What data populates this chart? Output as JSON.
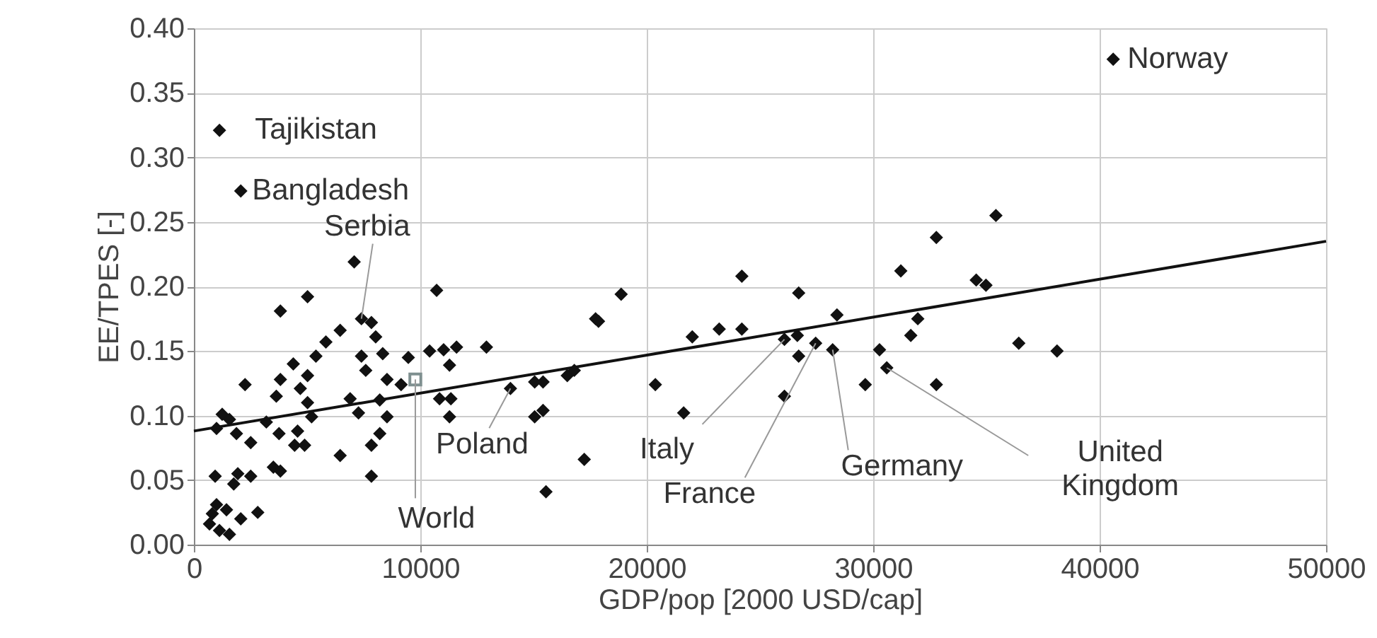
{
  "chart_data": {
    "type": "scatter",
    "xlabel": "GDP/pop [2000 USD/cap]",
    "ylabel": "EE/TPES [-]",
    "xlim": [
      0,
      50000
    ],
    "xticks": [
      0,
      10000,
      20000,
      30000,
      40000,
      50000
    ],
    "ylim": [
      0,
      0.4
    ],
    "yticks": [
      {
        "value": 0,
        "label": "0.00"
      },
      {
        "value": 0.05,
        "label": "0.05"
      },
      {
        "value": 0.1,
        "label": "0.10"
      },
      {
        "value": 0.15,
        "label": "0.15"
      },
      {
        "value": 0.2,
        "label": "0.20"
      },
      {
        "value": 0.25,
        "label": "0.25"
      },
      {
        "value": 0.3,
        "label": "0.30"
      },
      {
        "value": 0.35,
        "label": "0.35"
      },
      {
        "value": 0.4,
        "label": "0.40"
      }
    ],
    "grid": true,
    "series": [
      {
        "marker": "diamond",
        "color": "#111111",
        "x": [
          40600,
          1130,
          2070,
          7080,
          5020,
          3820,
          10720,
          17740,
          7400,
          7840,
          6460,
          5830,
          8030,
          5390,
          4390,
          7400,
          8340,
          9470,
          10410,
          11030,
          11600,
          12920,
          11290,
          7590,
          8530,
          9150,
          2260,
          3820,
          5020,
          4700,
          3640,
          5020,
          6900,
          8210,
          10850,
          11350,
          1250,
          1570,
          3200,
          5200,
          7270,
          8530,
          11290,
          13980,
          15050,
          15420,
          16490,
          16800,
          15420,
          15050,
          17240,
          15550,
          1000,
          1880,
          2510,
          3760,
          4580,
          4450,
          4890,
          6460,
          7840,
          8210,
          3510,
          3820,
          940,
          1940,
          2510,
          1760,
          7840,
          1000,
          1440,
          2820,
          2070,
          690,
          1130,
          1570,
          815,
          18870,
          17870,
          20380,
          21630,
          22010,
          23200,
          24200,
          24200,
          26710,
          26650,
          26080,
          26710,
          26080,
          27460,
          28210,
          28400,
          29650,
          30280,
          30600,
          31220,
          31660,
          31970,
          32790,
          32790,
          35420,
          34550,
          34980,
          36430,
          38120
        ],
        "values": [
          0.376,
          0.321,
          0.274,
          0.219,
          0.192,
          0.181,
          0.197,
          0.175,
          0.175,
          0.172,
          0.166,
          0.157,
          0.161,
          0.146,
          0.14,
          0.146,
          0.148,
          0.145,
          0.15,
          0.151,
          0.153,
          0.153,
          0.139,
          0.135,
          0.128,
          0.124,
          0.124,
          0.128,
          0.131,
          0.121,
          0.115,
          0.11,
          0.113,
          0.112,
          0.113,
          0.113,
          0.101,
          0.097,
          0.095,
          0.099,
          0.102,
          0.099,
          0.099,
          0.121,
          0.126,
          0.126,
          0.131,
          0.135,
          0.104,
          0.099,
          0.066,
          0.041,
          0.09,
          0.086,
          0.079,
          0.086,
          0.088,
          0.077,
          0.077,
          0.069,
          0.077,
          0.086,
          0.06,
          0.057,
          0.053,
          0.055,
          0.053,
          0.047,
          0.053,
          0.031,
          0.027,
          0.025,
          0.02,
          0.016,
          0.011,
          0.008,
          0.024,
          0.194,
          0.173,
          0.124,
          0.102,
          0.161,
          0.167,
          0.167,
          0.208,
          0.195,
          0.162,
          0.159,
          0.146,
          0.115,
          0.156,
          0.151,
          0.178,
          0.124,
          0.151,
          0.137,
          0.212,
          0.162,
          0.175,
          0.238,
          0.124,
          0.255,
          0.205,
          0.201,
          0.156,
          0.15
        ]
      },
      {
        "marker": "square",
        "color": "#7f9090",
        "x": [
          9780
        ],
        "values": [
          0.128
        ]
      },
      {
        "type": "line",
        "color": "#111111",
        "x": [
          0,
          50000
        ],
        "values": [
          0.088,
          0.235
        ]
      }
    ],
    "annotations": [
      {
        "text": "Norway",
        "x": 40600,
        "y": 0.376
      },
      {
        "text": "Tajikistan",
        "x": 1130,
        "y": 0.321
      },
      {
        "text": "Bangladesh",
        "x": 2070,
        "y": 0.274
      },
      {
        "text": "Serbia",
        "x": 7400,
        "y": 0.175
      },
      {
        "text": "Poland",
        "x": 13980,
        "y": 0.121
      },
      {
        "text": "World",
        "x": 9780,
        "y": 0.128
      },
      {
        "text": "Italy",
        "x": 26080,
        "y": 0.159
      },
      {
        "text": "France",
        "x": 27460,
        "y": 0.156
      },
      {
        "text": "Germany",
        "x": 28210,
        "y": 0.151
      },
      {
        "text": "United Kingdom",
        "x": 30600,
        "y": 0.137
      }
    ]
  }
}
